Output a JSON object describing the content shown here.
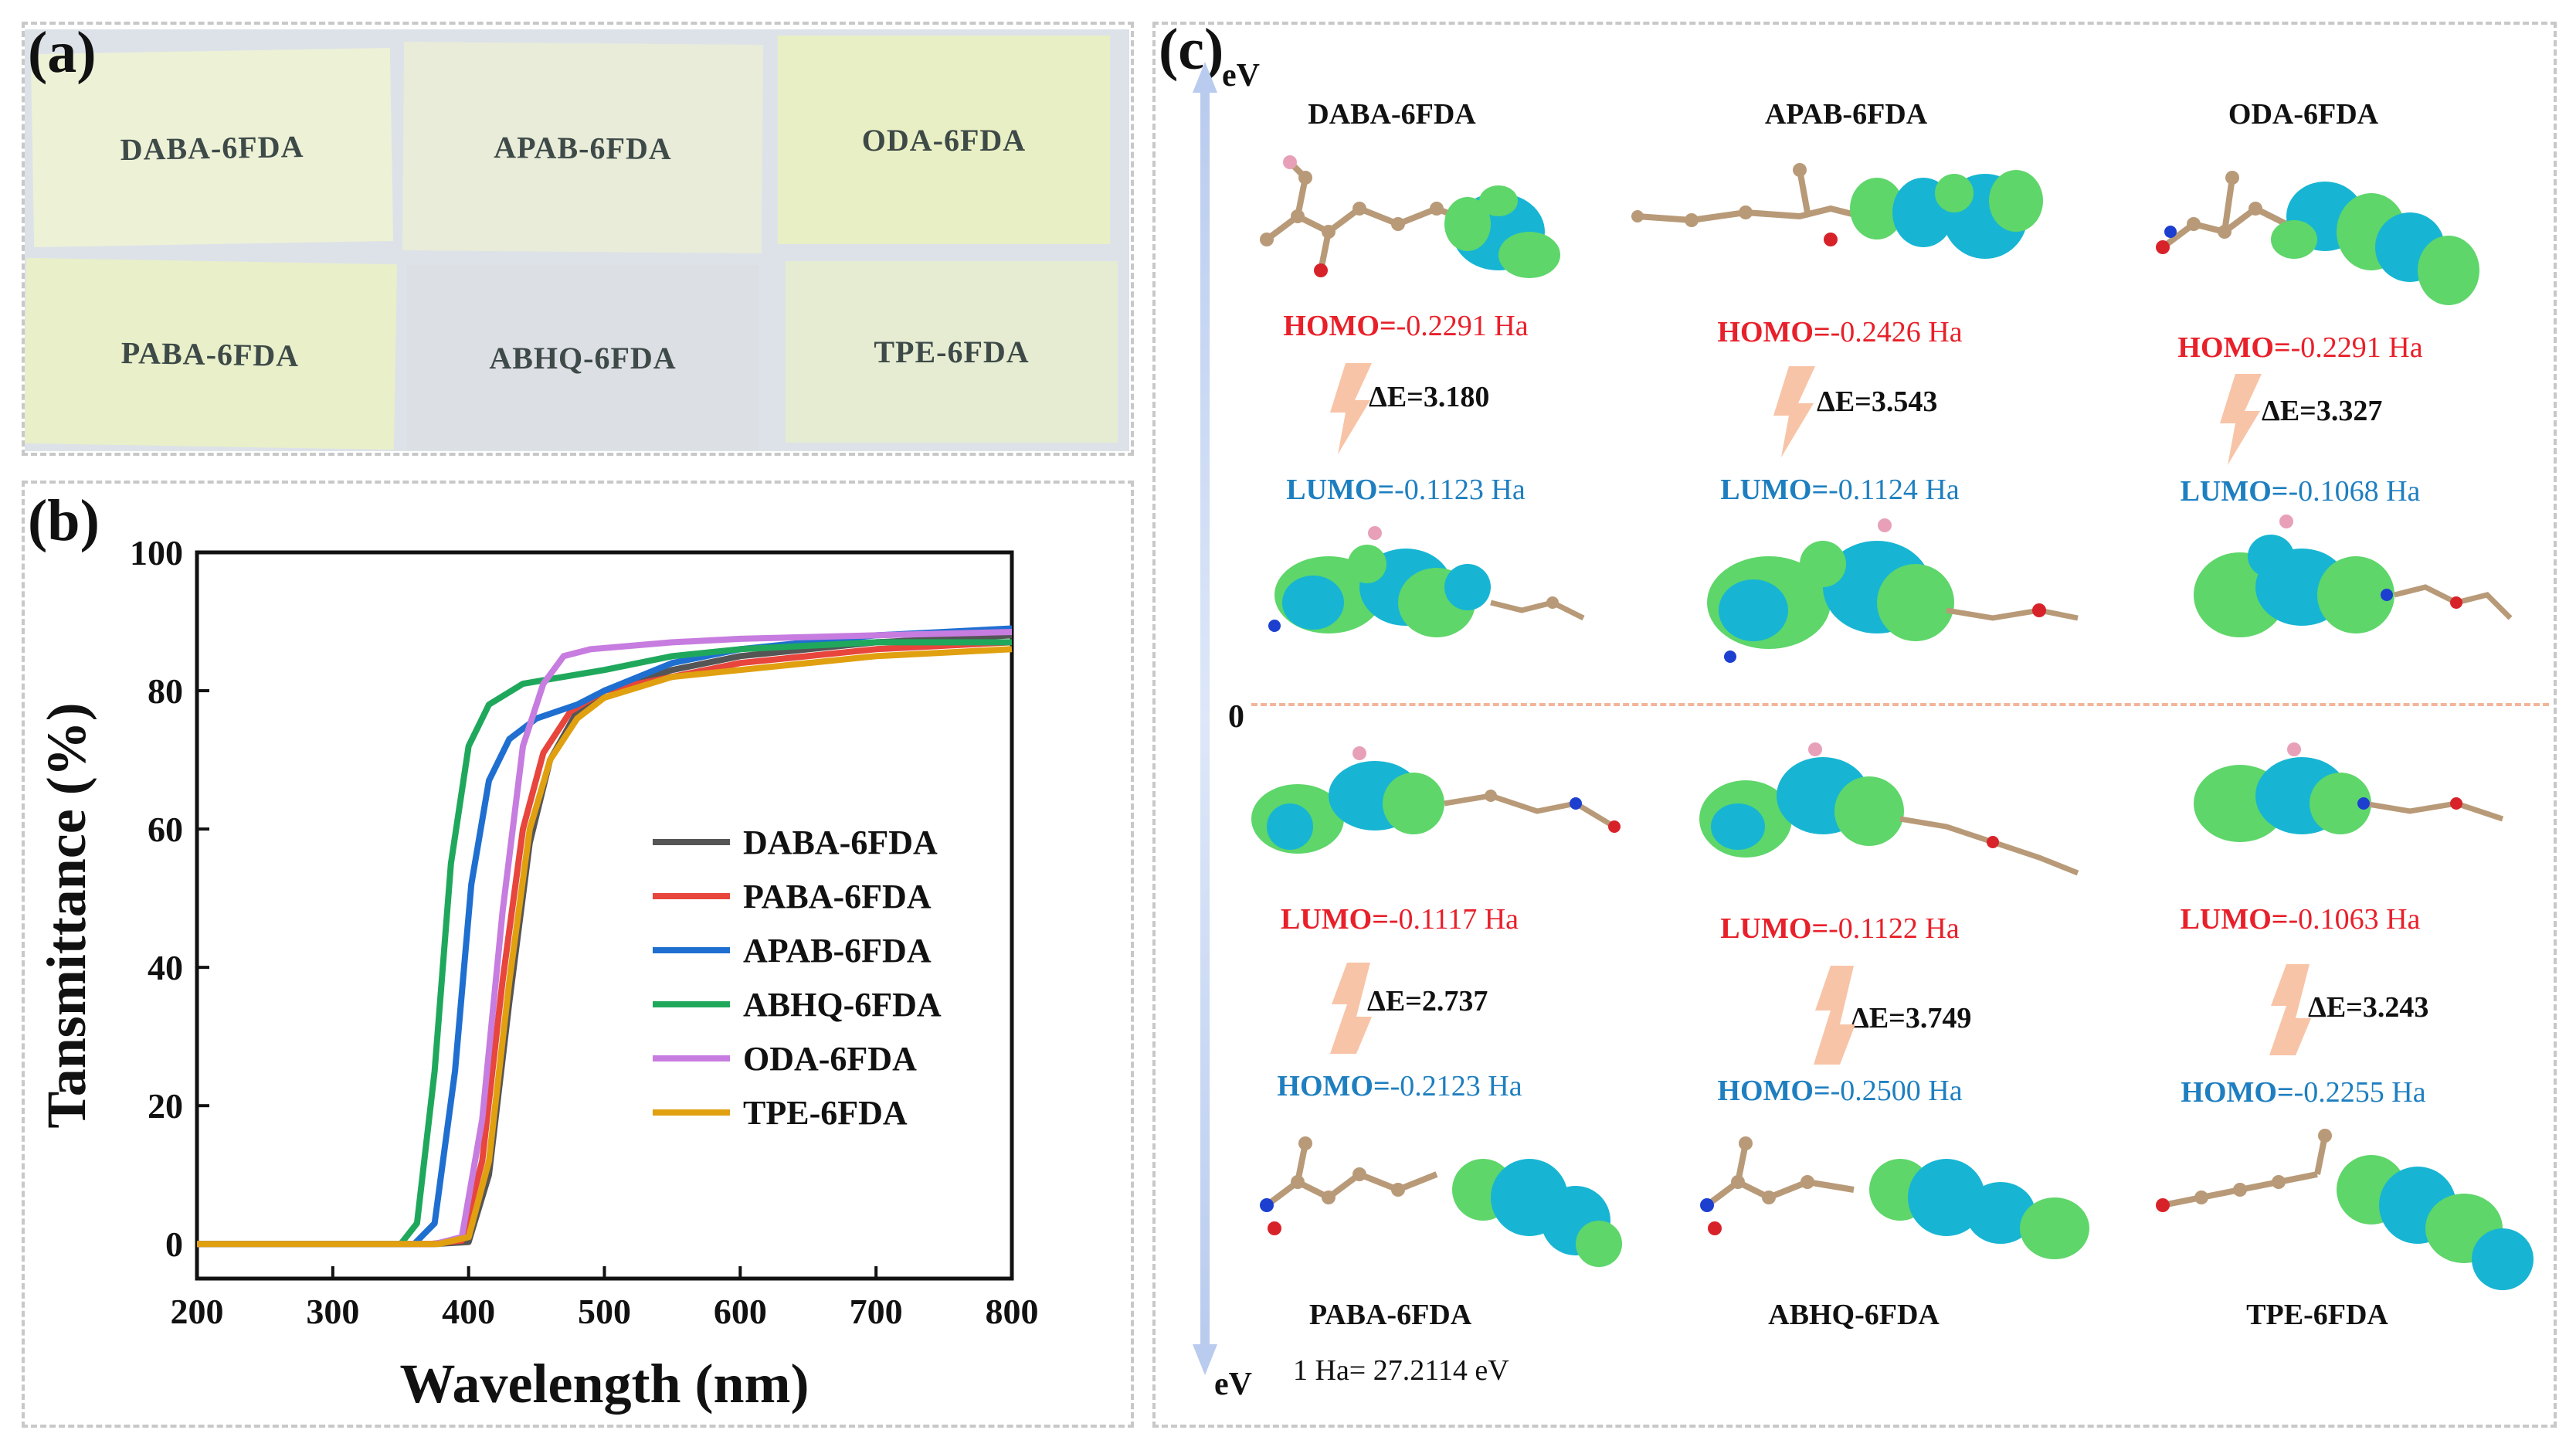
{
  "panel_letters": {
    "a": "(a)",
    "b": "(b)",
    "c": "(c)"
  },
  "panel_a": {
    "films": [
      "DABA-6FDA",
      "APAB-6FDA",
      "ODA-6FDA",
      "PABA-6FDA",
      "ABHQ-6FDA",
      "TPE-6FDA"
    ]
  },
  "chart_data": {
    "type": "line",
    "title": "",
    "xlabel": "Wavelength (nm)",
    "ylabel": "Tansmittance (%)",
    "xlim": [
      200,
      800
    ],
    "ylim": [
      -5,
      100
    ],
    "xticks": [
      200,
      300,
      400,
      500,
      600,
      700,
      800
    ],
    "yticks": [
      0,
      20,
      40,
      60,
      80,
      100
    ],
    "legend_position": "center-right",
    "series": [
      {
        "name": "DABA-6FDA",
        "color": "#555555",
        "points": [
          [
            200,
            0
          ],
          [
            375,
            0
          ],
          [
            400,
            0.3
          ],
          [
            415,
            10
          ],
          [
            430,
            35
          ],
          [
            445,
            58
          ],
          [
            460,
            70
          ],
          [
            480,
            77
          ],
          [
            500,
            80
          ],
          [
            550,
            83
          ],
          [
            600,
            85
          ],
          [
            700,
            87
          ],
          [
            800,
            88
          ]
        ]
      },
      {
        "name": "PABA-6FDA",
        "color": "#e8453c",
        "points": [
          [
            200,
            0
          ],
          [
            372,
            0
          ],
          [
            395,
            0.5
          ],
          [
            410,
            12
          ],
          [
            425,
            38
          ],
          [
            440,
            60
          ],
          [
            455,
            71
          ],
          [
            475,
            77
          ],
          [
            500,
            80
          ],
          [
            550,
            82
          ],
          [
            600,
            84
          ],
          [
            700,
            86
          ],
          [
            800,
            87
          ]
        ]
      },
      {
        "name": "APAB-6FDA",
        "color": "#1f6fd0",
        "points": [
          [
            200,
            0
          ],
          [
            360,
            0
          ],
          [
            375,
            3
          ],
          [
            390,
            25
          ],
          [
            402,
            52
          ],
          [
            415,
            67
          ],
          [
            430,
            73
          ],
          [
            450,
            76
          ],
          [
            480,
            78
          ],
          [
            500,
            80
          ],
          [
            550,
            84
          ],
          [
            600,
            86
          ],
          [
            700,
            88
          ],
          [
            800,
            89
          ]
        ]
      },
      {
        "name": "ABHQ-6FDA",
        "color": "#1fa85c",
        "points": [
          [
            200,
            0
          ],
          [
            350,
            0
          ],
          [
            362,
            3
          ],
          [
            375,
            25
          ],
          [
            387,
            55
          ],
          [
            400,
            72
          ],
          [
            415,
            78
          ],
          [
            440,
            81
          ],
          [
            470,
            82
          ],
          [
            500,
            83
          ],
          [
            550,
            85
          ],
          [
            600,
            86
          ],
          [
            700,
            87
          ],
          [
            800,
            87
          ]
        ]
      },
      {
        "name": "ODA-6FDA",
        "color": "#c77ce0",
        "points": [
          [
            200,
            0
          ],
          [
            375,
            0
          ],
          [
            395,
            1
          ],
          [
            410,
            18
          ],
          [
            425,
            48
          ],
          [
            440,
            72
          ],
          [
            455,
            81
          ],
          [
            470,
            85
          ],
          [
            490,
            86
          ],
          [
            550,
            87
          ],
          [
            600,
            87.5
          ],
          [
            700,
            88
          ],
          [
            800,
            88.5
          ]
        ]
      },
      {
        "name": "TPE-6FDA",
        "color": "#e0a010",
        "points": [
          [
            200,
            0
          ],
          [
            378,
            0
          ],
          [
            400,
            1
          ],
          [
            415,
            12
          ],
          [
            430,
            38
          ],
          [
            445,
            60
          ],
          [
            460,
            70
          ],
          [
            480,
            76
          ],
          [
            500,
            79
          ],
          [
            550,
            82
          ],
          [
            600,
            83
          ],
          [
            700,
            85
          ],
          [
            800,
            86
          ]
        ]
      }
    ]
  },
  "panel_c": {
    "axis_top": "eV",
    "axis_bottom": "eV",
    "zero": "0",
    "conversion_note": "1 Ha= 27.2114 eV",
    "top_row": [
      {
        "name": "DABA-6FDA",
        "upper_label": "HOMO=",
        "upper_value": "-0.2291 Ha",
        "gap": "ΔE=3.180",
        "lower_label": "LUMO=",
        "lower_value": "-0.1123 Ha"
      },
      {
        "name": "APAB-6FDA",
        "upper_label": "HOMO=",
        "upper_value": "-0.2426 Ha",
        "gap": "ΔE=3.543",
        "lower_label": "LUMO=",
        "lower_value": "-0.1124 Ha"
      },
      {
        "name": "ODA-6FDA",
        "upper_label": "HOMO=",
        "upper_value": "-0.2291 Ha",
        "gap": "ΔE=3.327",
        "lower_label": "LUMO=",
        "lower_value": "-0.1068 Ha"
      }
    ],
    "bottom_row": [
      {
        "name": "PABA-6FDA",
        "upper_label": "LUMO=",
        "upper_value": "-0.1117 Ha",
        "gap": "ΔE=2.737",
        "lower_label": "HOMO=",
        "lower_value": "-0.2123 Ha"
      },
      {
        "name": "ABHQ-6FDA",
        "upper_label": "LUMO=",
        "upper_value": "-0.1122 Ha",
        "gap": "ΔE=3.749",
        "lower_label": "HOMO=",
        "lower_value": "-0.2500 Ha"
      },
      {
        "name": "TPE-6FDA",
        "upper_label": "LUMO=",
        "upper_value": "-0.1063 Ha",
        "gap": "ΔE=3.243",
        "lower_label": "HOMO=",
        "lower_value": "-0.2255 Ha"
      }
    ]
  }
}
